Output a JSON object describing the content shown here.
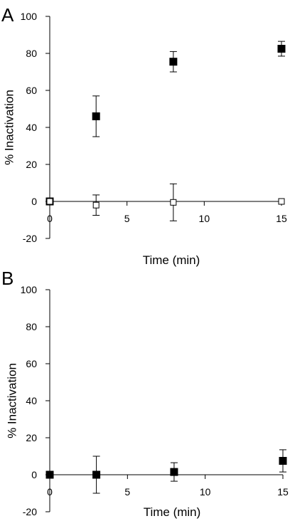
{
  "colors": {
    "ink": "#000000",
    "background": "#ffffff"
  },
  "chart_data": [
    {
      "panel_label": "A",
      "type": "scatter",
      "xlabel": "Time (min)",
      "ylabel": "% Inactivation",
      "xlim": [
        0,
        15
      ],
      "ylim": [
        -20,
        100
      ],
      "x_ticks": [
        "0",
        "5",
        "10",
        "15"
      ],
      "y_ticks": [
        "-20",
        "0",
        "20",
        "40",
        "60",
        "80",
        "100"
      ],
      "grid": false,
      "legend": "none",
      "series": [
        {
          "marker": "filled-square",
          "x": [
            0,
            3,
            8,
            15
          ],
          "y": [
            0,
            46,
            75.5,
            82.5
          ],
          "err": [
            0,
            11,
            5.5,
            4
          ]
        },
        {
          "marker": "open-square",
          "x": [
            0,
            3,
            8,
            15
          ],
          "y": [
            0,
            -2,
            -0.5,
            0
          ],
          "err": [
            0,
            5.5,
            10,
            0
          ]
        }
      ]
    },
    {
      "panel_label": "B",
      "type": "scatter",
      "xlabel": "Time (min)",
      "ylabel": "% Inactivation",
      "xlim": [
        0,
        15
      ],
      "ylim": [
        -20,
        100
      ],
      "x_ticks": [
        "0",
        "5",
        "10",
        "15"
      ],
      "y_ticks": [
        "-20",
        "0",
        "20",
        "40",
        "60",
        "80",
        "100"
      ],
      "grid": false,
      "legend": "none",
      "series": [
        {
          "marker": "filled-square",
          "x": [
            0,
            3,
            8,
            15
          ],
          "y": [
            0,
            0,
            1.5,
            7.5
          ],
          "err": [
            0,
            10,
            5,
            6
          ]
        }
      ]
    }
  ]
}
